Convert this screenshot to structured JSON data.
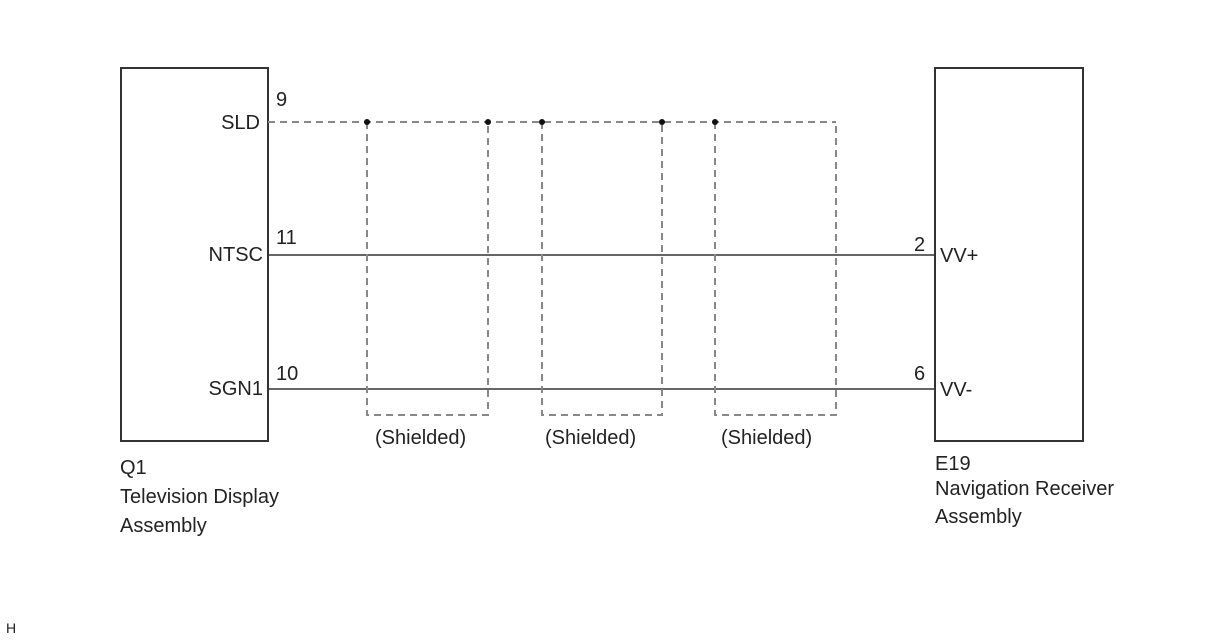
{
  "left_component": {
    "code": "Q1",
    "name_line1": "Television Display",
    "name_line2": "Assembly",
    "pins": [
      {
        "label": "SLD",
        "number": "9"
      },
      {
        "label": "NTSC",
        "number": "11"
      },
      {
        "label": "SGN1",
        "number": "10"
      }
    ]
  },
  "right_component": {
    "code": "E19",
    "name_line1": "Navigation Receiver",
    "name_line2": "Assembly",
    "pins": [
      {
        "label": "VV+",
        "number": "2"
      },
      {
        "label": "VV-",
        "number": "6"
      }
    ]
  },
  "shields": [
    "(Shielded)",
    "(Shielded)",
    "(Shielded)"
  ],
  "corner_mark": "H",
  "colors": {
    "line": "#333333",
    "shield": "#8a8a8a"
  }
}
